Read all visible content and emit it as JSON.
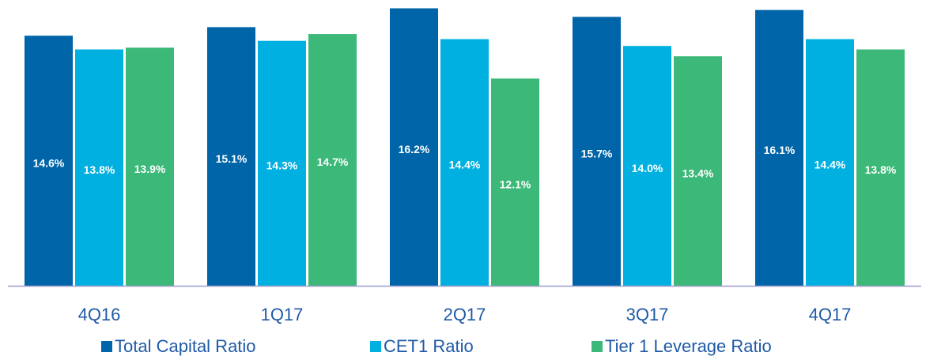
{
  "chart_data": {
    "type": "bar",
    "categories": [
      "4Q16",
      "1Q17",
      "2Q17",
      "3Q17",
      "4Q17"
    ],
    "series": [
      {
        "name": "Total Capital Ratio",
        "color": "#0065a8",
        "values": [
          14.6,
          15.1,
          16.2,
          15.7,
          16.1
        ],
        "value_labels": [
          "14.6%",
          "15.1%",
          "16.2%",
          "15.7%",
          "16.1%"
        ]
      },
      {
        "name": "CET1 Ratio",
        "color": "#00b0e0",
        "values": [
          13.8,
          14.3,
          14.4,
          14.0,
          14.4
        ],
        "value_labels": [
          "13.8%",
          "14.3%",
          "14.4%",
          "14.0%",
          "14.4%"
        ]
      },
      {
        "name": "Tier 1 Leverage Ratio",
        "color": "#3cb878",
        "values": [
          13.9,
          14.7,
          12.1,
          13.4,
          13.8
        ],
        "value_labels": [
          "13.9%",
          "14.7%",
          "12.1%",
          "13.4%",
          "13.8%"
        ]
      }
    ],
    "ylim": [
      0,
      16.5
    ],
    "legend": "bottom"
  }
}
